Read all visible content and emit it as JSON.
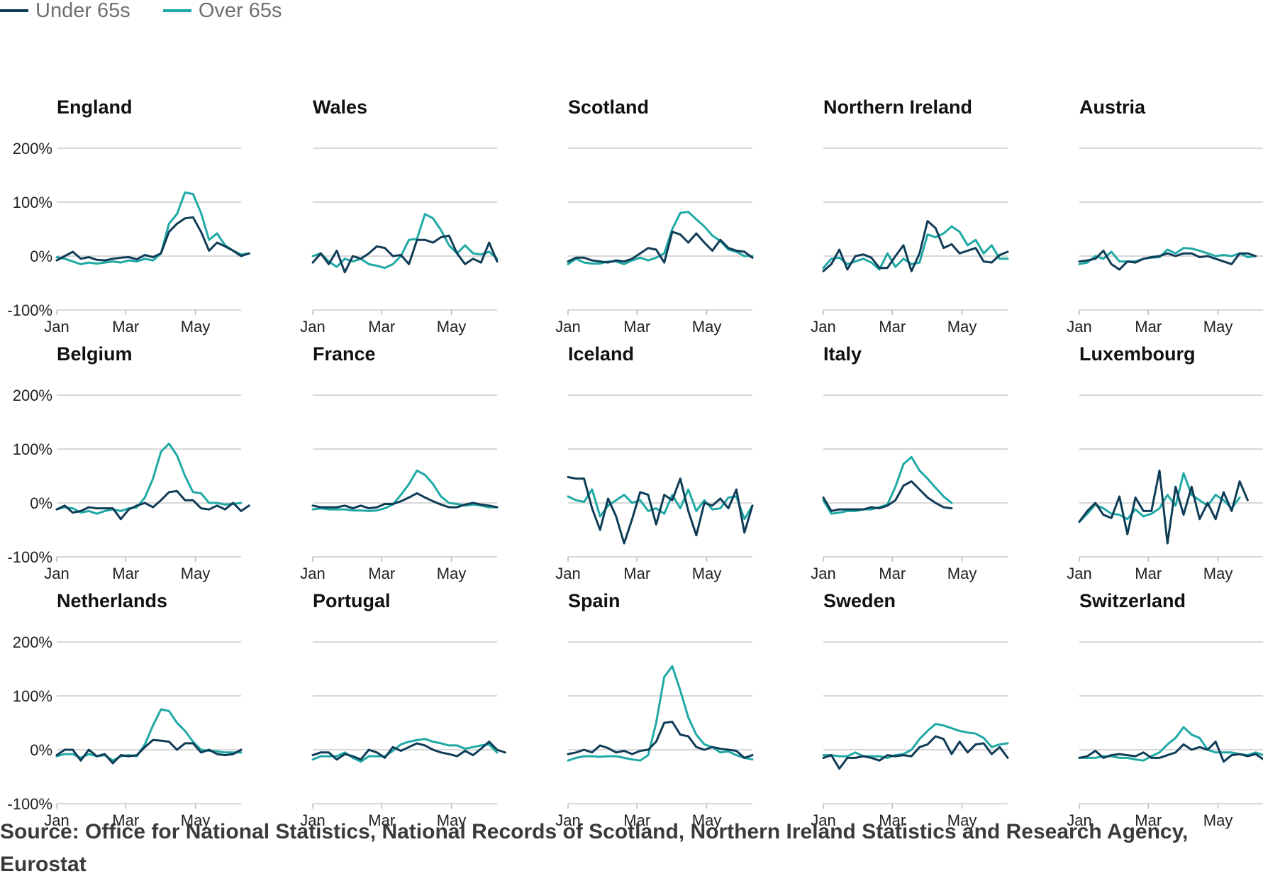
{
  "legend": [
    {
      "label": "Under 65s",
      "color": "#0f3c57"
    },
    {
      "label": "Over 65s",
      "color": "#1fa9a5"
    }
  ],
  "axis": {
    "y_ticks": [
      {
        "value": 200,
        "label": "200%"
      },
      {
        "value": 100,
        "label": "100%"
      },
      {
        "value": 0,
        "label": "0%"
      },
      {
        "value": -100,
        "label": "-100%"
      }
    ],
    "x_ticks": [
      {
        "week": 1,
        "label": "Jan"
      },
      {
        "week": 9.6,
        "label": "Mar"
      },
      {
        "week": 18.3,
        "label": "May"
      }
    ],
    "ylim": [
      -100,
      200
    ],
    "xlim": [
      1,
      24
    ]
  },
  "source_text": "Source: Office for National Statistics, National Records of Scotland, Northern Ireland Statistics and Research Agency, Eurostat",
  "chart_data": [
    {
      "type": "line",
      "title": "England",
      "x_start": 1,
      "series": [
        {
          "name": "Under 65s",
          "values": [
            -8,
            0,
            8,
            -5,
            -2,
            -7,
            -8,
            -5,
            -3,
            -2,
            -6,
            2,
            -2,
            5,
            45,
            60,
            70,
            72,
            45,
            10,
            25,
            18,
            10,
            0,
            5
          ]
        },
        {
          "name": "Over 65s",
          "values": [
            -2,
            -5,
            -10,
            -15,
            -12,
            -14,
            -12,
            -10,
            -12,
            -8,
            -10,
            -5,
            -8,
            5,
            60,
            78,
            118,
            115,
            80,
            30,
            42,
            20,
            10,
            3,
            5
          ]
        }
      ]
    },
    {
      "type": "line",
      "title": "Wales",
      "x_start": 1,
      "series": [
        {
          "name": "Under 65s",
          "values": [
            -12,
            5,
            -15,
            10,
            -30,
            0,
            -5,
            5,
            18,
            15,
            0,
            2,
            -15,
            30,
            30,
            25,
            35,
            38,
            5,
            -15,
            -5,
            -12,
            25,
            -10
          ]
        },
        {
          "name": "Over 65s",
          "values": [
            0,
            5,
            -10,
            -20,
            -5,
            -10,
            -5,
            -15,
            -18,
            -22,
            -15,
            0,
            30,
            32,
            78,
            70,
            48,
            20,
            5,
            20,
            5,
            3,
            8,
            -5
          ]
        }
      ]
    },
    {
      "type": "line",
      "title": "Scotland",
      "x_start": 1,
      "series": [
        {
          "name": "Under 65s",
          "values": [
            -10,
            -3,
            -3,
            -8,
            -10,
            -12,
            -8,
            -10,
            -5,
            5,
            15,
            12,
            -12,
            45,
            40,
            25,
            42,
            25,
            10,
            30,
            15,
            10,
            8,
            -3
          ]
        },
        {
          "name": "Over 65s",
          "values": [
            -15,
            -5,
            -12,
            -14,
            -14,
            -10,
            -10,
            -15,
            -8,
            -3,
            -8,
            -3,
            5,
            50,
            80,
            82,
            68,
            55,
            38,
            28,
            12,
            8,
            0,
            0
          ]
        }
      ]
    },
    {
      "type": "line",
      "title": "Northern Ireland",
      "x_start": 1,
      "series": [
        {
          "name": "Under 65s",
          "values": [
            -28,
            -15,
            12,
            -25,
            0,
            3,
            -3,
            -22,
            -22,
            0,
            20,
            -28,
            5,
            65,
            52,
            15,
            22,
            5,
            10,
            15,
            -10,
            -12,
            2,
            8
          ]
        },
        {
          "name": "Over 65s",
          "values": [
            -22,
            -5,
            -3,
            -15,
            -10,
            -5,
            -12,
            -25,
            5,
            -20,
            -5,
            -15,
            -12,
            40,
            35,
            42,
            55,
            45,
            20,
            30,
            5,
            20,
            -5,
            -5
          ]
        }
      ]
    },
    {
      "type": "line",
      "title": "Austria",
      "x_start": 1,
      "series": [
        {
          "name": "Under 65s",
          "values": [
            -10,
            -8,
            -5,
            10,
            -15,
            -25,
            -10,
            -12,
            -5,
            -2,
            0,
            5,
            0,
            5,
            5,
            -2,
            0,
            -5,
            -10,
            -15,
            5,
            5,
            0
          ]
        },
        {
          "name": "Over 65s",
          "values": [
            -15,
            -12,
            0,
            -5,
            8,
            -10,
            -10,
            -10,
            -5,
            -3,
            -2,
            12,
            5,
            15,
            14,
            10,
            5,
            0,
            2,
            0,
            5,
            -2,
            0
          ]
        }
      ]
    },
    {
      "type": "line",
      "title": "Belgium",
      "x_start": 1,
      "series": [
        {
          "name": "Under 65s",
          "values": [
            -12,
            -5,
            -18,
            -15,
            -8,
            -10,
            -10,
            -10,
            -30,
            -12,
            -5,
            0,
            -8,
            5,
            20,
            22,
            5,
            5,
            -10,
            -12,
            -5,
            -12,
            0,
            -15,
            -5
          ]
        },
        {
          "name": "Over 65s",
          "values": [
            -12,
            -8,
            -10,
            -18,
            -15,
            -20,
            -15,
            -12,
            -15,
            -10,
            -8,
            10,
            45,
            95,
            110,
            88,
            50,
            20,
            18,
            0,
            0,
            -3,
            -2,
            0
          ]
        }
      ]
    },
    {
      "type": "line",
      "title": "France",
      "x_start": 1,
      "series": [
        {
          "name": "Under 65s",
          "values": [
            -5,
            -8,
            -8,
            -8,
            -5,
            -10,
            -5,
            -10,
            -8,
            -2,
            -2,
            3,
            10,
            18,
            10,
            3,
            -3,
            -8,
            -8,
            -3,
            0,
            -3,
            -5,
            -8
          ]
        },
        {
          "name": "Over 65s",
          "values": [
            -12,
            -10,
            -12,
            -12,
            -12,
            -14,
            -14,
            -15,
            -14,
            -10,
            -3,
            15,
            35,
            60,
            52,
            35,
            12,
            0,
            -2,
            -5,
            -3,
            -5,
            -8,
            -8
          ]
        }
      ]
    },
    {
      "type": "line",
      "title": "Iceland",
      "x_start": 1,
      "series": [
        {
          "name": "Under 65s",
          "values": [
            48,
            45,
            45,
            -10,
            -50,
            8,
            -25,
            -75,
            -30,
            20,
            15,
            -40,
            15,
            5,
            45,
            -15,
            -60,
            0,
            -5,
            8,
            -10,
            25,
            -55,
            -5
          ]
        },
        {
          "name": "Over 65s",
          "values": [
            12,
            5,
            2,
            25,
            -25,
            -5,
            5,
            15,
            0,
            5,
            -15,
            -10,
            -20,
            15,
            -10,
            25,
            -15,
            5,
            -12,
            -10,
            10,
            12,
            -30,
            -5
          ]
        }
      ]
    },
    {
      "type": "line",
      "title": "Italy",
      "x_start": 1,
      "series": [
        {
          "name": "Under 65s",
          "values": [
            10,
            -15,
            -12,
            -12,
            -12,
            -12,
            -8,
            -10,
            -5,
            5,
            32,
            40,
            25,
            10,
            0,
            -8,
            -10
          ]
        },
        {
          "name": "Over 65s",
          "values": [
            5,
            -20,
            -18,
            -15,
            -15,
            -12,
            -12,
            -8,
            -3,
            30,
            72,
            85,
            60,
            45,
            28,
            12,
            0
          ]
        }
      ]
    },
    {
      "type": "line",
      "title": "Luxembourg",
      "x_start": 1,
      "series": [
        {
          "name": "Under 65s",
          "values": [
            -35,
            -15,
            0,
            -22,
            -28,
            12,
            -58,
            10,
            -15,
            -15,
            60,
            -75,
            30,
            -22,
            30,
            -30,
            0,
            -30,
            20,
            -15,
            40,
            5
          ]
        },
        {
          "name": "Over 65s",
          "values": [
            -35,
            -20,
            -3,
            -10,
            -20,
            -22,
            -30,
            -12,
            -25,
            -20,
            -10,
            15,
            -5,
            55,
            15,
            5,
            -5,
            15,
            5,
            -10,
            10
          ]
        }
      ]
    },
    {
      "type": "line",
      "title": "Netherlands",
      "x_start": 1,
      "series": [
        {
          "name": "Under 65s",
          "values": [
            -10,
            0,
            0,
            -20,
            0,
            -12,
            -8,
            -25,
            -10,
            -12,
            -10,
            5,
            18,
            17,
            15,
            0,
            12,
            12,
            -5,
            0,
            -8,
            -10,
            -8,
            0
          ]
        },
        {
          "name": "Over 65s",
          "values": [
            -12,
            -8,
            -8,
            -15,
            -8,
            -12,
            -10,
            -20,
            -12,
            -10,
            -12,
            10,
            45,
            75,
            72,
            50,
            35,
            15,
            0,
            -2,
            -3,
            -5,
            -5,
            -5
          ]
        }
      ]
    },
    {
      "type": "line",
      "title": "Portugal",
      "x_start": 1,
      "series": [
        {
          "name": "Under 65s",
          "values": [
            -10,
            -5,
            -5,
            -18,
            -8,
            -12,
            -18,
            0,
            -5,
            -15,
            5,
            -2,
            5,
            12,
            8,
            0,
            -5,
            -8,
            -12,
            -2,
            -10,
            2,
            15,
            0,
            -5
          ]
        },
        {
          "name": "Over 65s",
          "values": [
            -18,
            -12,
            -12,
            -12,
            -5,
            -15,
            -22,
            -12,
            -12,
            -12,
            -2,
            10,
            15,
            18,
            20,
            15,
            12,
            8,
            8,
            2,
            5,
            8,
            10,
            -5
          ]
        }
      ]
    },
    {
      "type": "line",
      "title": "Spain",
      "x_start": 1,
      "series": [
        {
          "name": "Under 65s",
          "values": [
            -8,
            -5,
            0,
            -5,
            8,
            3,
            -5,
            -2,
            -8,
            -2,
            0,
            15,
            50,
            52,
            28,
            25,
            5,
            0,
            5,
            2,
            0,
            -2,
            -15,
            -10
          ]
        },
        {
          "name": "Over 65s",
          "values": [
            -20,
            -15,
            -12,
            -12,
            -13,
            -12,
            -12,
            -15,
            -18,
            -20,
            -10,
            50,
            135,
            155,
            110,
            60,
            28,
            10,
            5,
            -5,
            -3,
            -10,
            -15,
            -18
          ]
        }
      ]
    },
    {
      "type": "line",
      "title": "Sweden",
      "x_start": 1,
      "series": [
        {
          "name": "Under 65s",
          "values": [
            -15,
            -10,
            -35,
            -15,
            -15,
            -12,
            -15,
            -20,
            -10,
            -12,
            -10,
            -12,
            5,
            10,
            25,
            20,
            -8,
            15,
            -5,
            10,
            12,
            -8,
            5,
            -15
          ]
        },
        {
          "name": "Over 65s",
          "values": [
            -10,
            -10,
            -12,
            -12,
            -5,
            -12,
            -12,
            -12,
            -15,
            -10,
            -8,
            0,
            20,
            35,
            48,
            45,
            40,
            35,
            32,
            30,
            22,
            5,
            10,
            12
          ]
        }
      ]
    },
    {
      "type": "line",
      "title": "Switzerland",
      "x_start": 1,
      "series": [
        {
          "name": "Under 65s",
          "values": [
            -15,
            -12,
            -2,
            -15,
            -10,
            -8,
            -10,
            -12,
            -5,
            -15,
            -15,
            -10,
            -5,
            10,
            0,
            5,
            0,
            15,
            -22,
            -10,
            -8,
            -12,
            -8,
            -18
          ]
        },
        {
          "name": "Over 65s",
          "values": [
            -15,
            -15,
            -15,
            -12,
            -12,
            -15,
            -15,
            -18,
            -20,
            -12,
            -5,
            10,
            22,
            42,
            28,
            22,
            0,
            -5,
            -5,
            -5,
            -8,
            -10,
            -5,
            -10
          ]
        }
      ]
    }
  ]
}
